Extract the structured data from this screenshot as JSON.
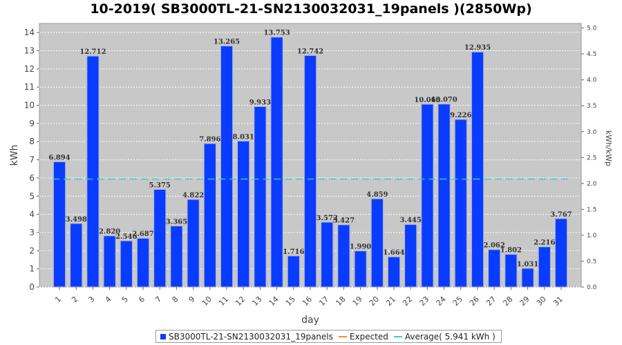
{
  "chart_data": {
    "type": "bar",
    "title": "10-2019( SB3000TL-21-SN2130032031_19panels )(2850Wp)",
    "xlabel": "day",
    "ylabel": "kWh",
    "ylabel_right": "kWh/kWp",
    "categories": [
      "1",
      "2",
      "3",
      "4",
      "5",
      "6",
      "7",
      "8",
      "9",
      "10",
      "11",
      "12",
      "13",
      "14",
      "15",
      "16",
      "17",
      "18",
      "19",
      "20",
      "21",
      "22",
      "23",
      "24",
      "25",
      "26",
      "27",
      "28",
      "29",
      "30",
      "31"
    ],
    "series": [
      {
        "name": "SB3000TL-21-SN2130032031_19panels",
        "color": "#0a3cff",
        "values": [
          6.894,
          3.498,
          12.712,
          2.82,
          2.546,
          2.687,
          5.375,
          3.365,
          4.822,
          7.896,
          13.265,
          8.031,
          9.933,
          13.753,
          1.716,
          12.742,
          3.572,
          3.427,
          1.99,
          4.859,
          1.664,
          3.445,
          10.063,
          10.07,
          9.226,
          12.935,
          2.062,
          1.802,
          1.031,
          2.216,
          3.767
        ],
        "value_labels": [
          "6.894",
          "3.498",
          "12.712",
          "2.820",
          "2.546",
          "2.687",
          "5.375",
          "3.365",
          "4.822",
          "7.896",
          "13.265",
          "8.031",
          "9.933",
          "13.753",
          "1.716",
          "12.742",
          "3.572",
          "3.427",
          "1.990",
          "4.859",
          "1.664",
          "3.445",
          "10.063",
          "10.070",
          "9.226",
          "12.935",
          "2.062",
          "1.802",
          "1.031",
          "2.216",
          "3.767"
        ]
      }
    ],
    "average": {
      "value": 5.941,
      "color": "#33cccc"
    },
    "ylim": [
      0,
      14.5
    ],
    "yticks": [
      "0",
      "1",
      "2",
      "3",
      "4",
      "5",
      "6",
      "7",
      "8",
      "9",
      "10",
      "11",
      "12",
      "13",
      "14"
    ],
    "ylim_right": [
      0,
      5.088
    ],
    "yticks_right": [
      "0.0",
      "0.5",
      "1.0",
      "1.5",
      "2.0",
      "2.5",
      "3.0",
      "3.5",
      "4.0",
      "4.5",
      "5.0"
    ],
    "grid": true,
    "legend_position": "bottom",
    "legend": [
      {
        "label": "SB3000TL-21-SN2130032031_19panels",
        "color": "#0a3cff",
        "kind": "box"
      },
      {
        "label": "Expected",
        "color": "#ff8c1a",
        "kind": "line"
      },
      {
        "label": "Average( 5.941 kWh )",
        "color": "#33cccc",
        "kind": "line"
      }
    ],
    "plot_background": "#c8c8c8"
  }
}
